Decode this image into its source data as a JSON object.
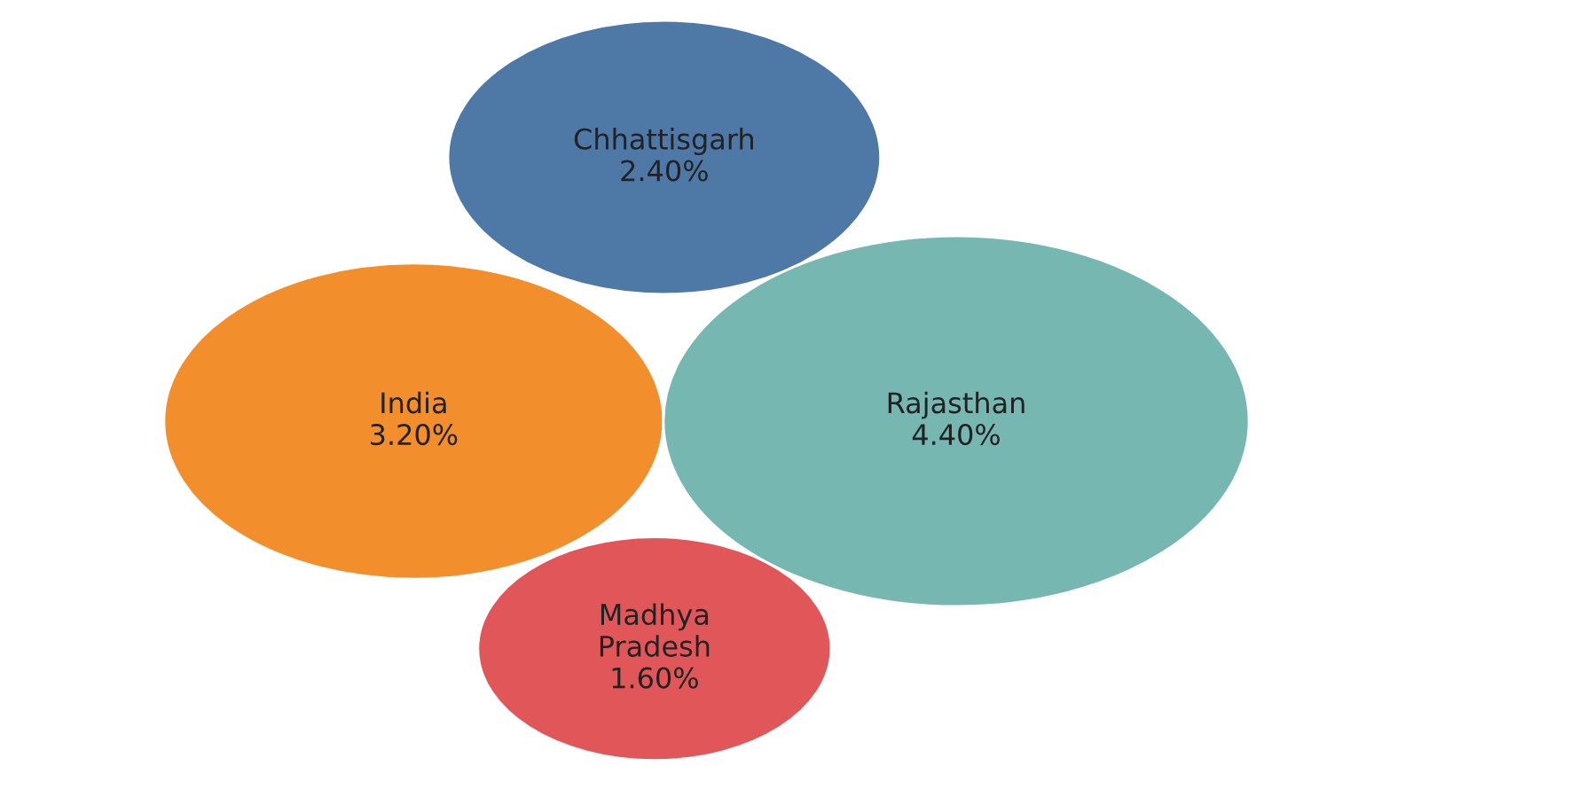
{
  "chart_data": {
    "type": "other",
    "categories": [
      "Chhattisgarh",
      "India",
      "Madhya Pradesh",
      "Rajasthan"
    ],
    "values": [
      2.4,
      3.2,
      1.6,
      4.4
    ],
    "value_labels": [
      "2.40%",
      "3.20%",
      "1.60%",
      "4.40%"
    ],
    "colors": [
      "#4e79a7",
      "#f28e2b",
      "#e15759",
      "#76b7b2"
    ]
  }
}
